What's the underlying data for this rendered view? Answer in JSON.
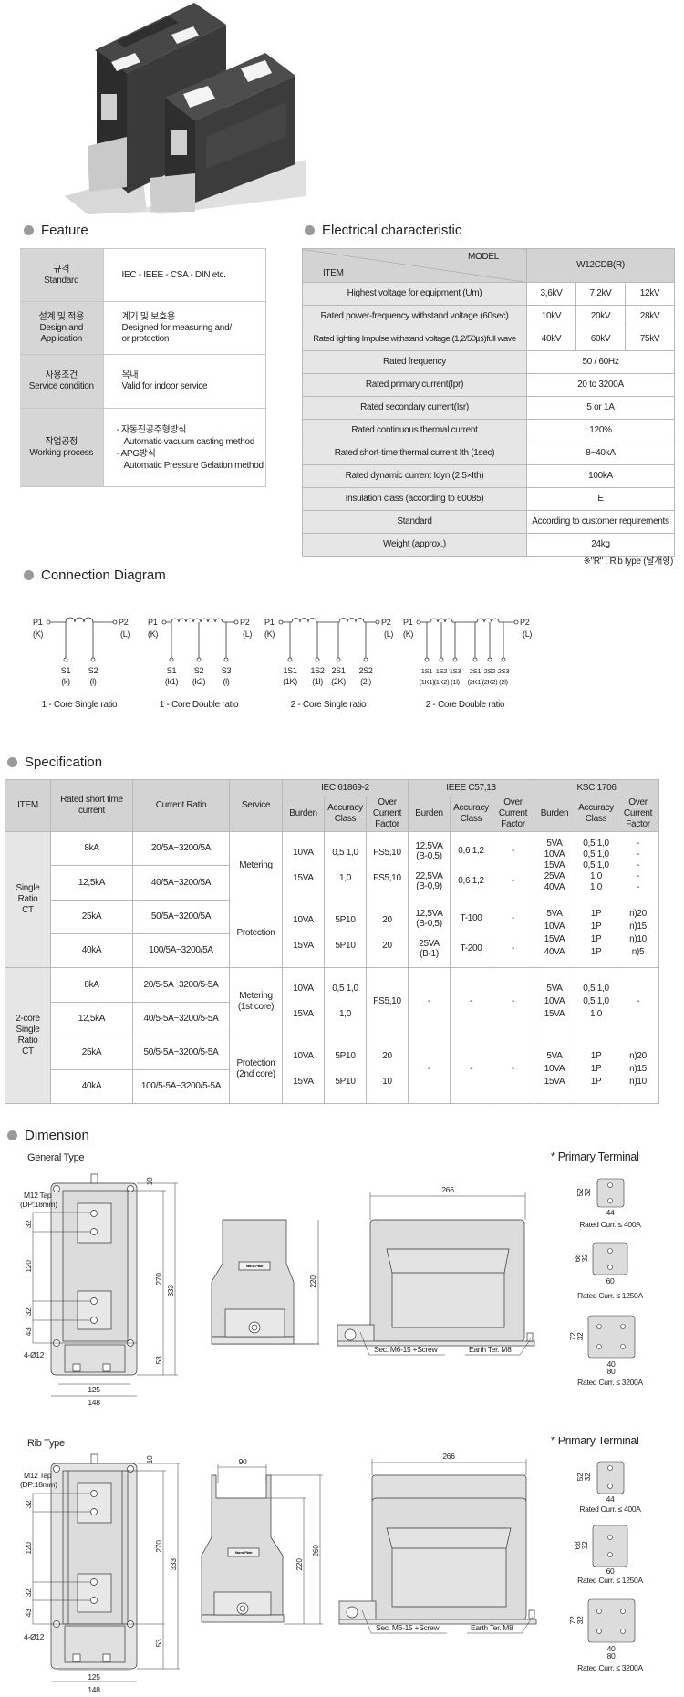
{
  "feature": {
    "title": "Feature",
    "rows": [
      {
        "label_ko": "규격",
        "label_en": "Standard",
        "lines": [
          "IEC - IEEE - CSA - DIN etc."
        ]
      },
      {
        "label_ko": "설계 및 적용",
        "label_en": "Design and\nApplication",
        "lines": [
          "계기 및 보호용",
          "Designed for measuring and/",
          "or protection"
        ]
      },
      {
        "label_ko": "사용조건",
        "label_en": "Service condition",
        "lines": [
          "옥내",
          "Valid for indoor service"
        ]
      },
      {
        "label_ko": "작업공정",
        "label_en": "Working process",
        "lines": [
          "- 자동진공주형방식",
          "Automatic vacuum casting method",
          "- APG방식",
          "Automatic Pressure Gelation method"
        ]
      }
    ]
  },
  "electrical": {
    "title": "Electrical characteristic",
    "header_model": "MODEL",
    "header_item": "ITEM",
    "model_name": "W12CDB(R)",
    "rows": [
      {
        "item": "Highest voltage for equipment (Um)",
        "values": [
          "3,6kV",
          "7,2kV",
          "12kV"
        ]
      },
      {
        "item": "Rated power-frequency withstand voltage (60sec)",
        "values": [
          "10kV",
          "20kV",
          "28kV"
        ]
      },
      {
        "item": "Rated lighting Impulse withstand voltage (1,2/50㎲)full wave",
        "values": [
          "40kV",
          "60kV",
          "75kV"
        ]
      },
      {
        "item": "Rated frequency",
        "value": "50 / 60Hz"
      },
      {
        "item": "Rated primary current(Ipr)",
        "value": "20 to 3200A"
      },
      {
        "item": "Rated secondary current(Isr)",
        "value": "5 or 1A"
      },
      {
        "item": "Rated continuous thermal current",
        "value": "120%"
      },
      {
        "item": "Rated short-time thermal current Ith (1sec)",
        "value": "8~40kA"
      },
      {
        "item": "Rated dynamic current Idyn (2,5×Ith)",
        "value": "100kA"
      },
      {
        "item": "Insulation class (according to 60085)",
        "value": "E"
      },
      {
        "item": "Standard",
        "value": "According to customer requirements"
      },
      {
        "item": "Weight (approx.)",
        "value": "24kg"
      }
    ],
    "note": "※\"R\" : Rib type (날개형)"
  },
  "connection": {
    "title": "Connection Diagram",
    "p1": "P1",
    "k": "(K)",
    "p2": "P2",
    "l": "(L)",
    "diagrams": [
      {
        "caption": "1 - Core  Single ratio",
        "taps": [
          [
            "S1",
            "(k)"
          ],
          [
            "S2",
            "(l)"
          ]
        ]
      },
      {
        "caption": "1 - Core  Double ratio",
        "taps": [
          [
            "S1",
            "(k1)"
          ],
          [
            "S2",
            "(k2)"
          ],
          [
            "S3",
            "(l)"
          ]
        ]
      },
      {
        "caption": "2 - Core  Single ratio",
        "taps": [
          [
            "1S1",
            "(1K)"
          ],
          [
            "1S2",
            "(1l)"
          ],
          [
            "2S1",
            "(2K)"
          ],
          [
            "2S2",
            "(2l)"
          ]
        ]
      },
      {
        "caption": "2 - Core  Double ratio",
        "taps": [
          [
            "1S1",
            "(1K1)"
          ],
          [
            "1S2",
            "(1K2)"
          ],
          [
            "1S3",
            "(1l)"
          ],
          [
            "2S1",
            "(2K1)"
          ],
          [
            "2S2",
            "(2K2)"
          ],
          [
            "2S3",
            "(2l)"
          ]
        ]
      }
    ]
  },
  "specification": {
    "title": "Specification",
    "headers": {
      "item": "ITEM",
      "short_time": "Rated short time\ncurrent",
      "ratio": "Current Ratio",
      "service": "Service",
      "iec": "IEC 61869-2",
      "ieee": "IEEE C57,13",
      "ksc": "KSC 1706",
      "burden": "Burden",
      "accuracy": "Accuracy\nClass",
      "ocf": "Over\nCurrent\nFactor"
    },
    "single": {
      "item": "Single\nRatio\nCT",
      "rows": [
        {
          "current": "8kA",
          "ratio": "20/5A~3200/5A"
        },
        {
          "current": "12,5kA",
          "ratio": "40/5A~3200/5A"
        },
        {
          "current": "25kA",
          "ratio": "50/5A~3200/5A"
        },
        {
          "current": "40kA",
          "ratio": "100/5A~3200/5A"
        }
      ],
      "metering": {
        "service": "Metering",
        "iec": [
          "10VA\n\n15VA",
          "0,5 1,0\n\n1,0",
          "FS5,10\n\nFS5,10"
        ],
        "ieee": [
          "12,5VA\n(B-0,5)\n\n22,5VA\n(B-0,9)",
          "0,6 1,2\n\n\n0,6 1,2",
          "-\n\n\n-"
        ],
        "ksc": [
          "5VA\n10VA\n15VA\n25VA\n40VA",
          "0,5 1,0\n0,5 1,0\n0,5 1,0\n1,0\n1,0",
          "-\n-\n-\n-\n-"
        ]
      },
      "protection": {
        "service": "Protection",
        "iec": [
          "10VA\n\n15VA",
          "5P10\n\n5P10",
          "20\n\n20"
        ],
        "ieee": [
          "12,5VA\n(B-0,5)\n\n25VA\n(B-1)",
          "T-100\n\n\nT-200",
          "-\n\n\n-"
        ],
        "ksc": [
          "5VA\n10VA\n15VA\n40VA",
          "1P\n1P\n1P\n1P",
          "n)20\nn)15\nn)10\nn)5"
        ]
      }
    },
    "twocore": {
      "item": "2-core\nSingle\nRatio\nCT",
      "rows": [
        {
          "current": "8kA",
          "ratio": "20/5-5A~3200/5-5A"
        },
        {
          "current": "12,5kA",
          "ratio": "40/5-5A~3200/5-5A"
        },
        {
          "current": "25kA",
          "ratio": "50/5-5A~3200/5-5A"
        },
        {
          "current": "40kA",
          "ratio": "100/5-5A~3200/5-5A"
        }
      ],
      "metering": {
        "service": "Metering\n(1st core)",
        "iec": [
          "10VA\n\n15VA",
          "0,5 1,0\n\n1,0",
          "FS5,10"
        ],
        "ieee": [
          "-",
          "-",
          "-"
        ],
        "ksc": [
          "5VA\n10VA\n15VA",
          "0,5 1,0\n0,5 1,0\n1,0",
          "-"
        ]
      },
      "protection": {
        "service": "Protection\n(2nd core)",
        "iec": [
          "10VA\n\n15VA",
          "5P10\n\n5P10",
          "20\n\n10"
        ],
        "ieee": [
          "-",
          "-",
          "-"
        ],
        "ksc": [
          "5VA\n10VA\n15VA",
          "1P\n1P\n1P",
          "n)20\nn)15\nn)10"
        ]
      }
    }
  },
  "dimension": {
    "title": "Dimension",
    "primary_terminal": "* Primary  Terminal",
    "tap": "M12 Tap",
    "tap_depth": "(DP:18mm)",
    "holes": "4-Ø12",
    "name_plate": "Name Plate",
    "sec": "Sec. M6-15 +Screw",
    "earth": "Earth Ter. M8",
    "front_dims": {
      "d10": "10",
      "d32a": "32",
      "d120": "120",
      "d32b": "32",
      "d43": "43",
      "d270": "270",
      "d333": "333",
      "d53": "53",
      "d125": "125",
      "d148": "148"
    },
    "d266": "266",
    "terminals": [
      {
        "h": "52",
        "pitch": "32",
        "w": "44",
        "caption": "Rated Curr. ≤ 400A"
      },
      {
        "h": "68",
        "pitch": "32",
        "w": "60",
        "caption": "Rated Curr. ≤ 1250A"
      },
      {
        "h": "72",
        "pitch": "32",
        "w": "80",
        "inner": "40",
        "caption": "Rated Curr. ≤ 3200A"
      }
    ],
    "general": {
      "title": "General Type",
      "d220": "220"
    },
    "rib": {
      "title": "Rib Type",
      "d90": "90",
      "d220": "220",
      "d260": "260"
    }
  }
}
